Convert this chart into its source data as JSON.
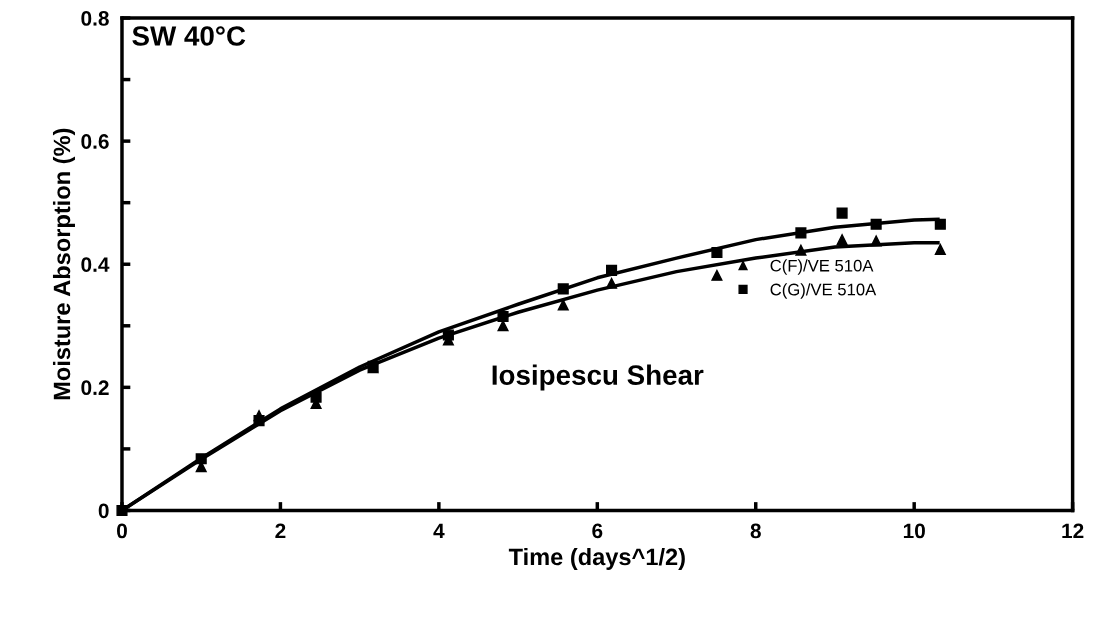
{
  "chart_data": {
    "type": "scatter",
    "xlabel": "Time (days^1/2)",
    "ylabel": "Moisture Absorption (%)",
    "annotations": [
      "SW 40°C",
      "Iosipescu Shear"
    ],
    "xlim": [
      0,
      12
    ],
    "xticks": [
      0,
      2,
      4,
      6,
      8,
      10,
      12
    ],
    "ylim": [
      0,
      0.8
    ],
    "yticks": [
      0,
      0.2,
      0.4,
      0.6,
      0.8
    ],
    "grid": false,
    "legend": "right",
    "series": [
      {
        "name": "C(F)/VE 510A",
        "color": "#000000",
        "marker": "triangle",
        "x": [
          1.0,
          1.73,
          2.45,
          3.17,
          4.12,
          4.81,
          5.57,
          6.18,
          7.51,
          8.57,
          9.09,
          9.52,
          10.33
        ],
        "values": [
          0.071,
          0.154,
          0.174,
          0.232,
          0.277,
          0.3,
          0.334,
          0.369,
          0.382,
          0.423,
          0.44,
          0.438,
          0.424
        ]
      },
      {
        "name": "C(G)/VE 510A",
        "color": "#000000",
        "marker": "square",
        "x": [
          0,
          1.0,
          1.73,
          2.45,
          3.17,
          4.12,
          4.81,
          5.57,
          6.18,
          7.51,
          8.57,
          9.09,
          9.52,
          10.33
        ],
        "values": [
          0,
          0.084,
          0.146,
          0.184,
          0.234,
          0.285,
          0.315,
          0.36,
          0.39,
          0.419,
          0.451,
          0.483,
          0.465,
          0.465
        ]
      },
      {
        "type": "line",
        "color": "#000000",
        "marker": "none",
        "x": [
          0,
          1,
          2,
          3,
          4,
          5,
          6,
          7,
          8,
          9,
          10,
          10.3
        ],
        "values": [
          0,
          0.083,
          0.162,
          0.228,
          0.28,
          0.322,
          0.358,
          0.388,
          0.41,
          0.428,
          0.435,
          0.435
        ]
      },
      {
        "type": "line",
        "color": "#000000",
        "marker": "none",
        "x": [
          0,
          1,
          2,
          3,
          4,
          5,
          6,
          7,
          8,
          9,
          10,
          10.3
        ],
        "values": [
          0,
          0.085,
          0.165,
          0.233,
          0.29,
          0.335,
          0.378,
          0.41,
          0.44,
          0.46,
          0.472,
          0.473
        ]
      }
    ]
  }
}
